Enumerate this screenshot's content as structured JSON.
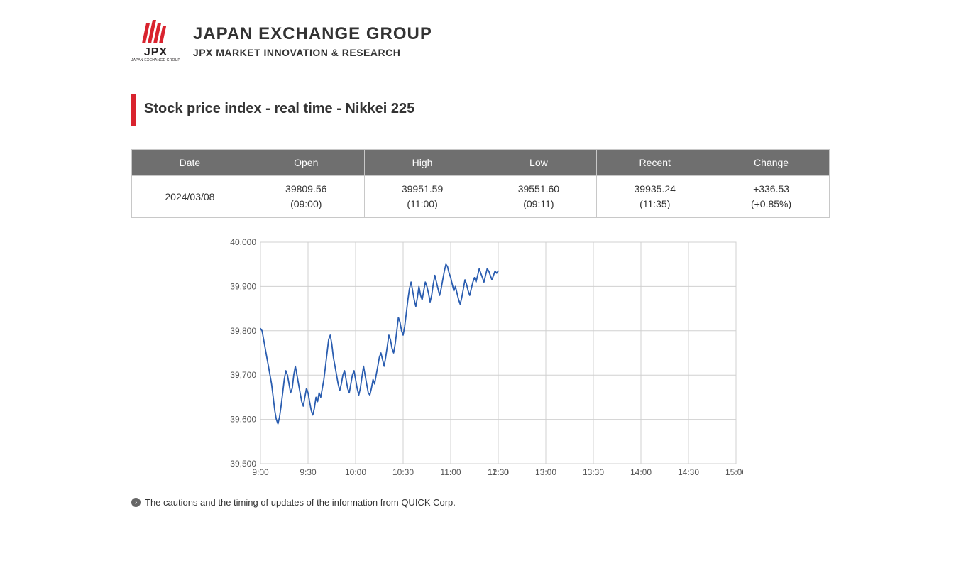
{
  "header": {
    "logo_label": "JPX",
    "logo_sublabel": "JAPAN EXCHANGE GROUP",
    "title_line1": "JAPAN EXCHANGE GROUP",
    "title_line2": "JPX MARKET INNOVATION & RESEARCH",
    "logo_color": "#d9232e"
  },
  "page_title": "Stock price index - real time - Nikkei 225",
  "table": {
    "columns": [
      "Date",
      "Open",
      "High",
      "Low",
      "Recent",
      "Change"
    ],
    "row": {
      "date": "2024/03/08",
      "open_value": "39809.56",
      "open_time": "(09:00)",
      "high_value": "39951.59",
      "high_time": "(11:00)",
      "low_value": "39551.60",
      "low_time": "(09:11)",
      "recent_value": "39935.24",
      "recent_time": "(11:35)",
      "change_value": "+336.53",
      "change_pct": "(+0.85%)"
    },
    "header_bg": "#6f6f6f",
    "header_fg": "#ffffff",
    "border_color": "#c8c8c8"
  },
  "chart": {
    "type": "line",
    "y": {
      "min": 39500,
      "max": 40000,
      "step": 100,
      "ticks": [
        "40,000",
        "39,900",
        "39,800",
        "39,700",
        "39,600",
        "39,500"
      ],
      "label_fontsize": 12
    },
    "x": {
      "min_minutes": 540,
      "max_minutes": 900,
      "tick_step_minutes": 30,
      "ticks": [
        "9:00",
        "9:30",
        "10:00",
        "10:30",
        "11:00",
        "11:30",
        "12:30",
        "13:00",
        "13:30",
        "14:00",
        "14:30",
        "15:00"
      ],
      "label_fontsize": 12
    },
    "grid_color": "#d0d0d0",
    "line_color": "#2a5db0",
    "line_width": 1.8,
    "background_color": "#ffffff",
    "lunch_break": {
      "start_minutes": 690,
      "end_minutes": 750
    },
    "series": [
      [
        540,
        39805
      ],
      [
        541,
        39800
      ],
      [
        542,
        39780
      ],
      [
        543,
        39760
      ],
      [
        544,
        39740
      ],
      [
        545,
        39720
      ],
      [
        546,
        39700
      ],
      [
        547,
        39680
      ],
      [
        548,
        39650
      ],
      [
        549,
        39620
      ],
      [
        550,
        39600
      ],
      [
        551,
        39590
      ],
      [
        552,
        39605
      ],
      [
        553,
        39630
      ],
      [
        554,
        39660
      ],
      [
        555,
        39690
      ],
      [
        556,
        39710
      ],
      [
        557,
        39700
      ],
      [
        558,
        39680
      ],
      [
        559,
        39660
      ],
      [
        560,
        39670
      ],
      [
        561,
        39700
      ],
      [
        562,
        39720
      ],
      [
        563,
        39700
      ],
      [
        564,
        39680
      ],
      [
        565,
        39660
      ],
      [
        566,
        39640
      ],
      [
        567,
        39630
      ],
      [
        568,
        39650
      ],
      [
        569,
        39670
      ],
      [
        570,
        39660
      ],
      [
        571,
        39640
      ],
      [
        572,
        39620
      ],
      [
        573,
        39610
      ],
      [
        574,
        39625
      ],
      [
        575,
        39650
      ],
      [
        576,
        39640
      ],
      [
        577,
        39660
      ],
      [
        578,
        39650
      ],
      [
        579,
        39670
      ],
      [
        580,
        39690
      ],
      [
        581,
        39720
      ],
      [
        582,
        39750
      ],
      [
        583,
        39780
      ],
      [
        584,
        39790
      ],
      [
        585,
        39770
      ],
      [
        586,
        39740
      ],
      [
        587,
        39720
      ],
      [
        588,
        39700
      ],
      [
        589,
        39680
      ],
      [
        590,
        39665
      ],
      [
        591,
        39680
      ],
      [
        592,
        39700
      ],
      [
        593,
        39710
      ],
      [
        594,
        39690
      ],
      [
        595,
        39670
      ],
      [
        596,
        39660
      ],
      [
        597,
        39680
      ],
      [
        598,
        39700
      ],
      [
        599,
        39710
      ],
      [
        600,
        39690
      ],
      [
        601,
        39670
      ],
      [
        602,
        39655
      ],
      [
        603,
        39670
      ],
      [
        604,
        39695
      ],
      [
        605,
        39720
      ],
      [
        606,
        39700
      ],
      [
        607,
        39680
      ],
      [
        608,
        39660
      ],
      [
        609,
        39655
      ],
      [
        610,
        39670
      ],
      [
        611,
        39690
      ],
      [
        612,
        39680
      ],
      [
        613,
        39700
      ],
      [
        614,
        39720
      ],
      [
        615,
        39740
      ],
      [
        616,
        39750
      ],
      [
        617,
        39735
      ],
      [
        618,
        39720
      ],
      [
        619,
        39740
      ],
      [
        620,
        39765
      ],
      [
        621,
        39790
      ],
      [
        622,
        39780
      ],
      [
        623,
        39760
      ],
      [
        624,
        39750
      ],
      [
        625,
        39770
      ],
      [
        626,
        39800
      ],
      [
        627,
        39830
      ],
      [
        628,
        39820
      ],
      [
        629,
        39800
      ],
      [
        630,
        39790
      ],
      [
        631,
        39810
      ],
      [
        632,
        39840
      ],
      [
        633,
        39870
      ],
      [
        634,
        39895
      ],
      [
        635,
        39910
      ],
      [
        636,
        39890
      ],
      [
        637,
        39870
      ],
      [
        638,
        39855
      ],
      [
        639,
        39875
      ],
      [
        640,
        39900
      ],
      [
        641,
        39880
      ],
      [
        642,
        39870
      ],
      [
        643,
        39890
      ],
      [
        644,
        39910
      ],
      [
        645,
        39900
      ],
      [
        646,
        39885
      ],
      [
        647,
        39865
      ],
      [
        648,
        39880
      ],
      [
        649,
        39905
      ],
      [
        650,
        39925
      ],
      [
        651,
        39910
      ],
      [
        652,
        39895
      ],
      [
        653,
        39880
      ],
      [
        654,
        39895
      ],
      [
        655,
        39915
      ],
      [
        656,
        39935
      ],
      [
        657,
        39950
      ],
      [
        658,
        39945
      ],
      [
        659,
        39930
      ],
      [
        660,
        39920
      ],
      [
        661,
        39905
      ],
      [
        662,
        39890
      ],
      [
        663,
        39900
      ],
      [
        664,
        39885
      ],
      [
        665,
        39870
      ],
      [
        666,
        39860
      ],
      [
        667,
        39875
      ],
      [
        668,
        39895
      ],
      [
        669,
        39915
      ],
      [
        670,
        39905
      ],
      [
        671,
        39890
      ],
      [
        672,
        39880
      ],
      [
        673,
        39895
      ],
      [
        674,
        39910
      ],
      [
        675,
        39920
      ],
      [
        676,
        39910
      ],
      [
        677,
        39925
      ],
      [
        678,
        39940
      ],
      [
        679,
        39930
      ],
      [
        680,
        39920
      ],
      [
        681,
        39910
      ],
      [
        682,
        39925
      ],
      [
        683,
        39940
      ],
      [
        684,
        39935
      ],
      [
        685,
        39925
      ],
      [
        686,
        39915
      ],
      [
        687,
        39925
      ],
      [
        688,
        39935
      ],
      [
        689,
        39930
      ],
      [
        690,
        39935
      ]
    ]
  },
  "footnote": "The cautions and the timing of updates of the information from QUICK Corp."
}
